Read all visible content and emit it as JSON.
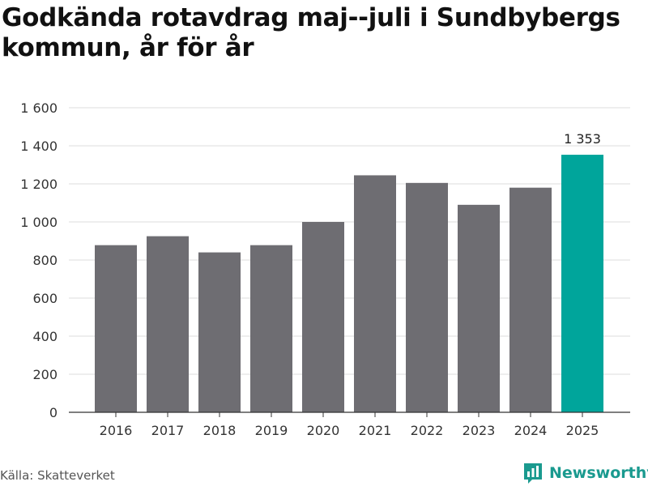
{
  "title": "Godkända rotavdrag maj--juli i Sundbybergs kommun, år för år",
  "source": "Källa: Skatteverket",
  "brand": {
    "name": "Newsworthy",
    "icon": "newsworthy-logo-icon",
    "color": "#1a9a8f"
  },
  "colors": {
    "bar": "#6e6d72",
    "highlight": "#00a59b",
    "grid": "#dddddd",
    "axis": "#333333",
    "text": "#333333"
  },
  "chart_data": {
    "type": "bar",
    "categories": [
      "2016",
      "2017",
      "2018",
      "2019",
      "2020",
      "2021",
      "2022",
      "2023",
      "2024",
      "2025"
    ],
    "values": [
      878,
      925,
      840,
      878,
      1000,
      1245,
      1205,
      1090,
      1180,
      1353
    ],
    "highlight_index": 9,
    "data_labels": {
      "9": "1 353"
    },
    "ylim": [
      0,
      1600
    ],
    "yticks": [
      0,
      200,
      400,
      600,
      800,
      1000,
      1200,
      1400,
      1600
    ],
    "ytick_labels": [
      "0",
      "200",
      "400",
      "600",
      "800",
      "1 000",
      "1 200",
      "1 400",
      "1 600"
    ],
    "grid": true,
    "xlabel": "",
    "ylabel": ""
  }
}
